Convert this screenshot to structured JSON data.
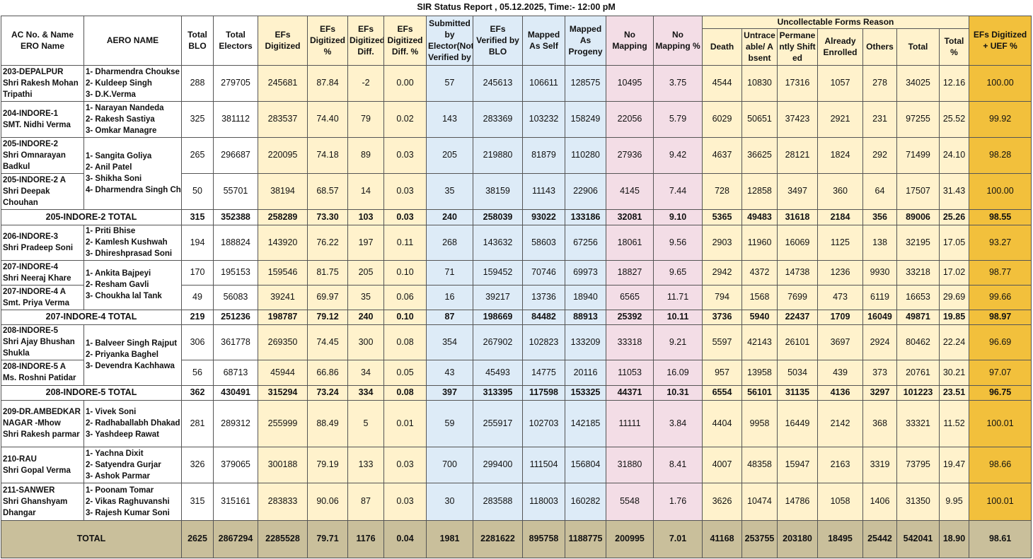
{
  "title": "SIR Status Report , 05.12.2025,  Time:- 12:00 pM",
  "header": {
    "columns": [
      "AC No. & Name ERO Name",
      "AERO NAME",
      "Total BLO",
      "Total Electors",
      "EFs Digitized",
      "EFs Digitized %",
      "EFs Digitized Diff.",
      "EFs Digitized Diff. %",
      "Submitted by Elector(Not Verified by",
      "EFs Verified by BLO",
      "Mapped As Self",
      "Mapped As Progeny",
      "No Mapping",
      "No Mapping %"
    ],
    "group": "Uncollectable Forms Reason",
    "group_columns": [
      "Death",
      "Untraceable/ Absent",
      "Permanently Shifted",
      "Already Enrolled",
      "Others",
      "Total",
      "Total %"
    ],
    "last": "EFs Digitized + UEF %"
  },
  "body": [
    {
      "aero": [
        "1- Dharmendra Choukse",
        "2- Kuldeep Singh",
        "3- D.K.Verma"
      ],
      "rows": [
        {
          "ac": [
            "203-DEPALPUR",
            "Shri Rakesh Mohan Tripathi"
          ],
          "cells": [
            "288",
            "279705",
            "245681",
            "87.84",
            "-2",
            "0.00",
            "57",
            "245613",
            "106611",
            "128575",
            "10495",
            "3.75",
            "4544",
            "10830",
            "17316",
            "1057",
            "278",
            "34025",
            "12.16",
            "100.00"
          ]
        }
      ]
    },
    {
      "aero": [
        "1- Narayan Nandeda",
        "2- Rakesh Sastiya",
        "3- Omkar Managre"
      ],
      "rows": [
        {
          "ac": [
            "204-INDORE-1",
            "SMT. Nidhi Verma"
          ],
          "cells": [
            "325",
            "381112",
            "283537",
            "74.40",
            "79",
            "0.02",
            "143",
            "283369",
            "103232",
            "158249",
            "22056",
            "5.79",
            "6029",
            "50651",
            "37423",
            "2921",
            "231",
            "97255",
            "25.52",
            "99.92"
          ]
        }
      ]
    },
    {
      "aero": [
        "1- Sangita Goliya",
        "2- Anil Patel",
        "3- Shikha Soni",
        "4- Dharmendra Singh Chouhan"
      ],
      "rows": [
        {
          "ac": [
            "205-INDORE-2",
            "Shri Omnarayan Badkul"
          ],
          "cells": [
            "265",
            "296687",
            "220095",
            "74.18",
            "89",
            "0.03",
            "205",
            "219880",
            "81879",
            "110280",
            "27936",
            "9.42",
            "4637",
            "36625",
            "28121",
            "1824",
            "292",
            "71499",
            "24.10",
            "98.28"
          ]
        },
        {
          "ac": [
            "205-INDORE-2 A",
            "Shri Deepak Chouhan"
          ],
          "cells": [
            "50",
            "55701",
            "38194",
            "68.57",
            "14",
            "0.03",
            "35",
            "38159",
            "11143",
            "22906",
            "4145",
            "7.44",
            "728",
            "12858",
            "3497",
            "360",
            "64",
            "17507",
            "31.43",
            "100.00"
          ]
        }
      ]
    },
    {
      "total": "205-INDORE-2 TOTAL",
      "cells": [
        "315",
        "352388",
        "258289",
        "73.30",
        "103",
        "0.03",
        "240",
        "258039",
        "93022",
        "133186",
        "32081",
        "9.10",
        "5365",
        "49483",
        "31618",
        "2184",
        "356",
        "89006",
        "25.26",
        "98.55"
      ]
    },
    {
      "aero": [
        "1- Priti Bhise",
        "2- Kamlesh Kushwah",
        "3- Dhireshprasad Soni"
      ],
      "rows": [
        {
          "ac": [
            "206-INDORE-3",
            "Shri Pradeep Soni"
          ],
          "cells": [
            "194",
            "188824",
            "143920",
            "76.22",
            "197",
            "0.11",
            "268",
            "143632",
            "58603",
            "67256",
            "18061",
            "9.56",
            "2903",
            "11960",
            "16069",
            "1125",
            "138",
            "32195",
            "17.05",
            "93.27"
          ]
        }
      ]
    },
    {
      "aero": [
        "1- Ankita Bajpeyi",
        "2- Resham Gavli",
        "3- Choukha lal Tank"
      ],
      "rows": [
        {
          "ac": [
            "207-INDORE-4",
            "Shri Neeraj Khare"
          ],
          "cells": [
            "170",
            "195153",
            "159546",
            "81.75",
            "205",
            "0.10",
            "71",
            "159452",
            "70746",
            "69973",
            "18827",
            "9.65",
            "2942",
            "4372",
            "14738",
            "1236",
            "9930",
            "33218",
            "17.02",
            "98.77"
          ]
        },
        {
          "ac": [
            "207-INDORE-4 A",
            "Smt. Priya Verma"
          ],
          "cells": [
            "49",
            "56083",
            "39241",
            "69.97",
            "35",
            "0.06",
            "16",
            "39217",
            "13736",
            "18940",
            "6565",
            "11.71",
            "794",
            "1568",
            "7699",
            "473",
            "6119",
            "16653",
            "29.69",
            "99.66"
          ]
        }
      ]
    },
    {
      "total": "207-INDORE-4 TOTAL",
      "cells": [
        "219",
        "251236",
        "198787",
        "79.12",
        "240",
        "0.10",
        "87",
        "198669",
        "84482",
        "88913",
        "25392",
        "10.11",
        "3736",
        "5940",
        "22437",
        "1709",
        "16049",
        "49871",
        "19.85",
        "98.97"
      ]
    },
    {
      "aero": [
        "1- Balveer Singh Rajput",
        "2- Priyanka Baghel",
        "3- Devendra Kachhawa"
      ],
      "rows": [
        {
          "ac": [
            "208-INDORE-5",
            "Shri Ajay Bhushan Shukla"
          ],
          "cells": [
            "306",
            "361778",
            "269350",
            "74.45",
            "300",
            "0.08",
            "354",
            "267902",
            "102823",
            "133209",
            "33318",
            "9.21",
            "5597",
            "42143",
            "26101",
            "3697",
            "2924",
            "80462",
            "22.24",
            "96.69"
          ]
        },
        {
          "ac": [
            "208-INDORE-5 A",
            "Ms. Roshni Patidar"
          ],
          "cells": [
            "56",
            "68713",
            "45944",
            "66.86",
            "34",
            "0.05",
            "43",
            "45493",
            "14775",
            "20116",
            "11053",
            "16.09",
            "957",
            "13958",
            "5034",
            "439",
            "373",
            "20761",
            "30.21",
            "97.07"
          ]
        }
      ]
    },
    {
      "total": "208-INDORE-5 TOTAL",
      "cells": [
        "362",
        "430491",
        "315294",
        "73.24",
        "334",
        "0.08",
        "397",
        "313395",
        "117598",
        "153325",
        "44371",
        "10.31",
        "6554",
        "56101",
        "31135",
        "4136",
        "3297",
        "101223",
        "23.51",
        "96.75"
      ]
    },
    {
      "aero": [
        "1- Vivek Soni",
        "2- Radhaballabh Dhakad",
        "3- Yashdeep Rawat"
      ],
      "rows": [
        {
          "ac": [
            "209-DR.AMBEDKAR NAGAR -Mhow",
            "Shri Rakesh parmar"
          ],
          "cells": [
            "281",
            "289312",
            "255999",
            "88.49",
            "5",
            "0.01",
            "59",
            "255917",
            "102703",
            "142185",
            "11111",
            "3.84",
            "4404",
            "9958",
            "16449",
            "2142",
            "368",
            "33321",
            "11.52",
            "100.01"
          ]
        }
      ]
    },
    {
      "aero": [
        "1- Yachna Dixit",
        "2- Satyendra Gurjar",
        "3- Ashok Parmar"
      ],
      "rows": [
        {
          "ac": [
            "210-RAU",
            "Shri Gopal Verma"
          ],
          "cells": [
            "326",
            "379065",
            "300188",
            "79.19",
            "133",
            "0.03",
            "700",
            "299400",
            "111504",
            "156804",
            "31880",
            "8.41",
            "4007",
            "48358",
            "15947",
            "2163",
            "3319",
            "73795",
            "19.47",
            "98.66"
          ]
        }
      ]
    },
    {
      "aero": [
        "1- Poonam Tomar",
        "2- Vikas Raghuvanshi",
        "3- Rajesh Kumar Soni"
      ],
      "rows": [
        {
          "ac": [
            "211-SANWER",
            "Shri Ghanshyam Dhangar"
          ],
          "cells": [
            "315",
            "315161",
            "283833",
            "90.06",
            "87",
            "0.03",
            "30",
            "283588",
            "118003",
            "160282",
            "5548",
            "1.76",
            "3626",
            "10474",
            "14786",
            "1058",
            "1406",
            "31350",
            "9.95",
            "100.01"
          ]
        }
      ]
    }
  ],
  "footer": {
    "label": "TOTAL",
    "cells": [
      "2625",
      "2867294",
      "2285528",
      "79.71",
      "1176",
      "0.04",
      "1981",
      "2281622",
      "895758",
      "1188775",
      "200995",
      "7.01",
      "41168",
      "253755",
      "203180",
      "18495",
      "25442",
      "542041",
      "18.90",
      "98.61"
    ]
  }
}
